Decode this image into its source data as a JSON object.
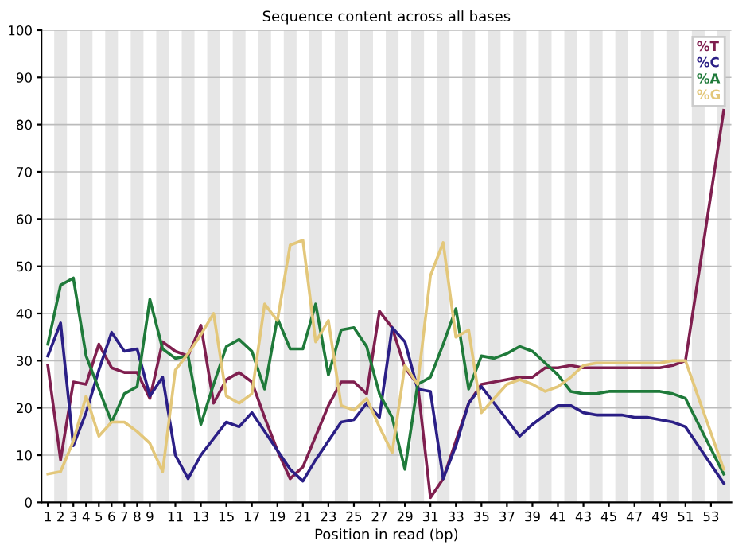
{
  "chart_data": {
    "type": "line",
    "title": "Sequence content across all bases",
    "xlabel": "Position in read (bp)",
    "xlim": [
      0.5,
      54.6
    ],
    "ylim": [
      0,
      100
    ],
    "yticks": [
      0,
      10,
      20,
      30,
      40,
      50,
      60,
      70,
      80,
      90,
      100
    ],
    "xticks": [
      1,
      2,
      3,
      4,
      5,
      6,
      7,
      8,
      9,
      11,
      13,
      15,
      17,
      19,
      21,
      23,
      25,
      27,
      29,
      31,
      33,
      35,
      37,
      39,
      41,
      43,
      45,
      47,
      49,
      51,
      53
    ],
    "grid": "y",
    "legend": "top right",
    "line_style": "solid",
    "marker": "none",
    "x": [
      1,
      2,
      3,
      4,
      5,
      6,
      7,
      8,
      9,
      10,
      11,
      12,
      13,
      14,
      15,
      16,
      17,
      18,
      19,
      20,
      21,
      22,
      23,
      24,
      25,
      26,
      27,
      28,
      29,
      30,
      31,
      32,
      33,
      34,
      35,
      36,
      37,
      38,
      39,
      40,
      41,
      42,
      43,
      44,
      45,
      46,
      47,
      48,
      49,
      50,
      51,
      54
    ],
    "series": [
      {
        "name": "%T",
        "color": "#7f1f4f",
        "values": [
          29,
          9,
          25.5,
          25,
          33.5,
          28.5,
          27.5,
          27.5,
          22,
          34,
          32,
          31,
          37.5,
          21,
          26,
          27.5,
          25.5,
          18,
          11,
          5,
          7.5,
          14,
          20.5,
          25.5,
          25.5,
          23,
          40.5,
          37,
          28.5,
          25,
          1,
          5,
          13,
          21,
          25,
          25.5,
          26,
          26.5,
          26.5,
          28.5,
          28.5,
          29,
          28.5,
          28.5,
          28.5,
          28.5,
          28.5,
          28.5,
          28.5,
          29,
          30,
          83
        ]
      },
      {
        "name": "%C",
        "color": "#2b1f86",
        "values": [
          31,
          38,
          12,
          19,
          28,
          36,
          32,
          32.5,
          22.5,
          26.5,
          10,
          5,
          10,
          13.5,
          17,
          16,
          19,
          15,
          11,
          7,
          4.5,
          9,
          13,
          17,
          17.5,
          21,
          18,
          37,
          34,
          24,
          23.5,
          5,
          12,
          21,
          24.5,
          21,
          17.5,
          14,
          16.5,
          18.5,
          20.5,
          20.5,
          19,
          18.5,
          18.5,
          18.5,
          18,
          18,
          17.5,
          17,
          16,
          4
        ]
      },
      {
        "name": "%A",
        "color": "#1f7a3a",
        "values": [
          33.5,
          46,
          47.5,
          31,
          24,
          17,
          23,
          24.5,
          43,
          32.5,
          30.5,
          31,
          16.5,
          25,
          33,
          34.5,
          32,
          24,
          39,
          32.5,
          32.5,
          42,
          27,
          36.5,
          37,
          33,
          23,
          18,
          7,
          25,
          26.5,
          33.5,
          41,
          24,
          31,
          30.5,
          31.5,
          33,
          32,
          29.5,
          27,
          23.5,
          23,
          23,
          23.5,
          23.5,
          23.5,
          23.5,
          23.5,
          23,
          22,
          6
        ]
      },
      {
        "name": "%G",
        "color": "#e3c77a",
        "values": [
          6,
          6.5,
          13,
          22.5,
          14,
          17,
          17,
          15,
          12.5,
          6.5,
          28,
          31.5,
          35.5,
          40,
          22.5,
          21,
          23,
          42,
          38.5,
          54.5,
          55.5,
          34,
          38.5,
          20.5,
          19.5,
          22,
          16,
          10.5,
          29,
          25,
          48,
          55,
          35,
          36.5,
          19,
          22,
          25,
          26,
          25,
          23.5,
          24.5,
          26.5,
          29,
          29.5,
          29.5,
          29.5,
          29.5,
          29.5,
          29.5,
          30,
          30,
          7
        ]
      }
    ],
    "bands": [
      {
        "axis": "x",
        "from": 1.5,
        "to": 2.5,
        "color": "#e6e6e6"
      },
      {
        "axis": "x",
        "from": 3.5,
        "to": 4.5,
        "color": "#e6e6e6"
      },
      {
        "axis": "x",
        "from": 5.5,
        "to": 6.5,
        "color": "#e6e6e6"
      },
      {
        "axis": "x",
        "from": 7.5,
        "to": 8.5,
        "color": "#e6e6e6"
      },
      {
        "axis": "x",
        "from": 9.5,
        "to": 10.5,
        "color": "#e6e6e6"
      },
      {
        "axis": "x",
        "from": 11.5,
        "to": 12.5,
        "color": "#e6e6e6"
      },
      {
        "axis": "x",
        "from": 13.5,
        "to": 14.5,
        "color": "#e6e6e6"
      },
      {
        "axis": "x",
        "from": 15.5,
        "to": 16.5,
        "color": "#e6e6e6"
      },
      {
        "axis": "x",
        "from": 17.5,
        "to": 18.5,
        "color": "#e6e6e6"
      },
      {
        "axis": "x",
        "from": 19.5,
        "to": 20.5,
        "color": "#e6e6e6"
      },
      {
        "axis": "x",
        "from": 21.5,
        "to": 22.5,
        "color": "#e6e6e6"
      },
      {
        "axis": "x",
        "from": 23.5,
        "to": 24.5,
        "color": "#e6e6e6"
      },
      {
        "axis": "x",
        "from": 25.5,
        "to": 26.5,
        "color": "#e6e6e6"
      },
      {
        "axis": "x",
        "from": 27.5,
        "to": 28.5,
        "color": "#e6e6e6"
      },
      {
        "axis": "x",
        "from": 29.5,
        "to": 30.5,
        "color": "#e6e6e6"
      },
      {
        "axis": "x",
        "from": 31.5,
        "to": 32.5,
        "color": "#e6e6e6"
      },
      {
        "axis": "x",
        "from": 33.5,
        "to": 34.5,
        "color": "#e6e6e6"
      },
      {
        "axis": "x",
        "from": 35.5,
        "to": 36.5,
        "color": "#e6e6e6"
      },
      {
        "axis": "x",
        "from": 37.5,
        "to": 38.5,
        "color": "#e6e6e6"
      },
      {
        "axis": "x",
        "from": 39.5,
        "to": 40.5,
        "color": "#e6e6e6"
      },
      {
        "axis": "x",
        "from": 41.5,
        "to": 42.5,
        "color": "#e6e6e6"
      },
      {
        "axis": "x",
        "from": 43.5,
        "to": 44.5,
        "color": "#e6e6e6"
      },
      {
        "axis": "x",
        "from": 45.5,
        "to": 46.5,
        "color": "#e6e6e6"
      },
      {
        "axis": "x",
        "from": 47.5,
        "to": 48.5,
        "color": "#e6e6e6"
      },
      {
        "axis": "x",
        "from": 49.5,
        "to": 50.5,
        "color": "#e6e6e6"
      },
      {
        "axis": "x",
        "from": 51.5,
        "to": 52.5,
        "color": "#e6e6e6"
      },
      {
        "axis": "x",
        "from": 53.5,
        "to": 54.5,
        "color": "#e6e6e6"
      }
    ]
  }
}
